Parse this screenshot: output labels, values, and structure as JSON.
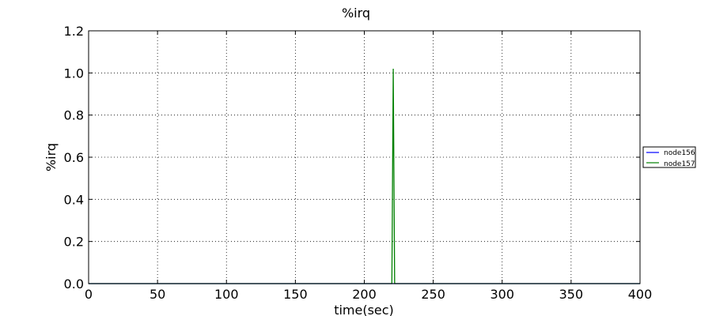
{
  "chart_data": {
    "type": "line",
    "title": "%irq",
    "xlabel": "time(sec)",
    "ylabel": "%irq",
    "xlim": [
      0,
      400
    ],
    "ylim": [
      0,
      1.2
    ],
    "xticks": [
      0,
      50,
      100,
      150,
      200,
      250,
      300,
      350,
      400
    ],
    "xtick_labels": [
      "0",
      "50",
      "100",
      "150",
      "200",
      "250",
      "300",
      "350",
      "400"
    ],
    "yticks": [
      0,
      0.2,
      0.4,
      0.6,
      0.8,
      1.0,
      1.2
    ],
    "ytick_labels": [
      "0.0",
      "0.2",
      "0.4",
      "0.6",
      "0.8",
      "1.0",
      "1.2"
    ],
    "grid": true,
    "legend_position": "right, outside plot",
    "series": [
      {
        "name": "node156",
        "color": "#0000ff",
        "x": [
          0,
          400
        ],
        "y": [
          0,
          0
        ]
      },
      {
        "name": "node157",
        "color": "#008000",
        "x": [
          0,
          220,
          221,
          222,
          223,
          400
        ],
        "y": [
          0,
          0,
          1.02,
          0,
          0,
          0
        ]
      }
    ]
  }
}
